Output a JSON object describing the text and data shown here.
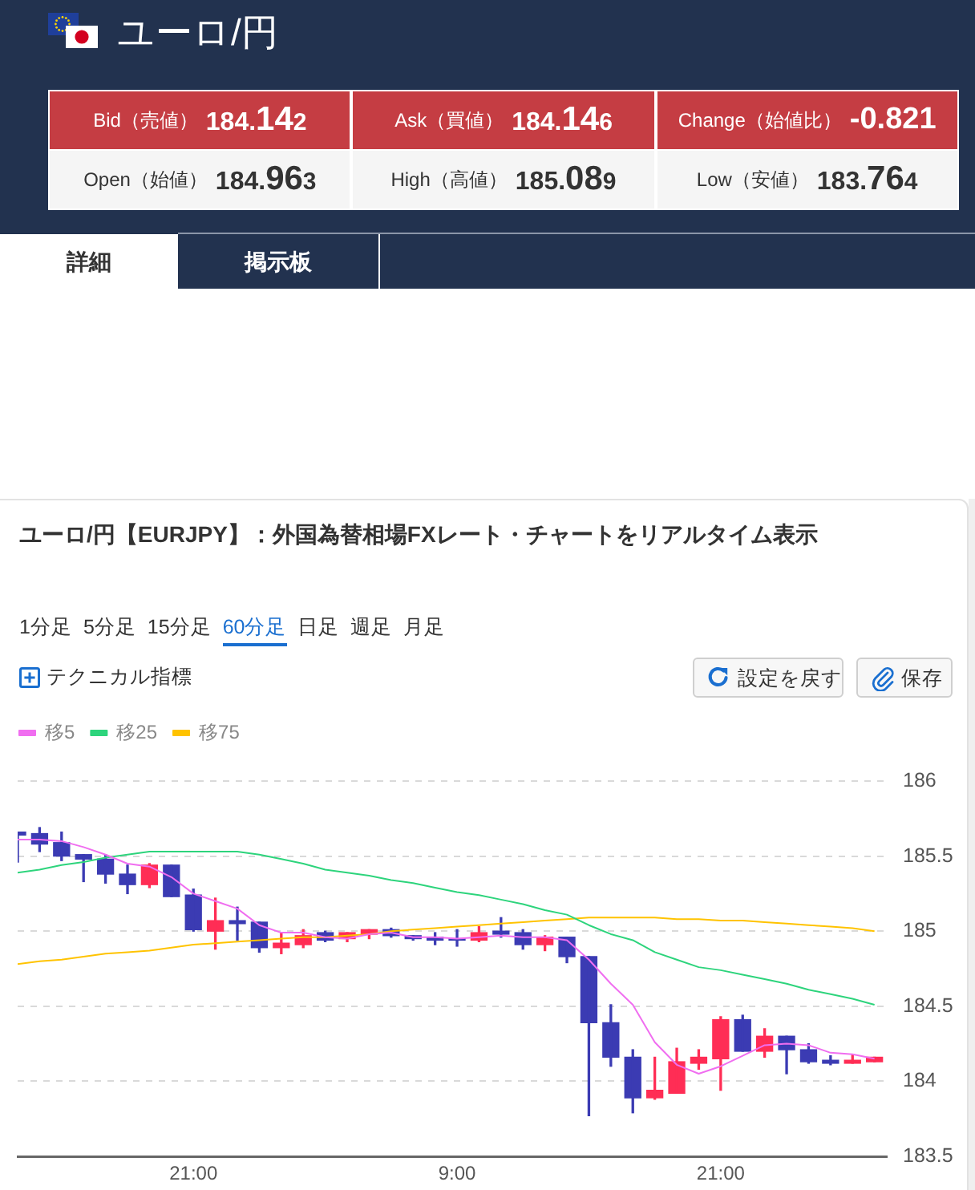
{
  "chart_data": [
    {
      "type": "other",
      "title": "ユーロ/円",
      "categories": [
        "Bid（売値）",
        "Ask（買値）",
        "Change（始値比）",
        "Open（始値）",
        "High（高値）",
        "Low（安値）"
      ],
      "values": [
        184.142,
        184.146,
        -0.821,
        184.963,
        185.089,
        183.764
      ],
      "colors": [
        "#c53d43",
        "#c53d43",
        "#c53d43",
        "#f5f5f5",
        "#f5f5f5",
        "#f5f5f5"
      ],
      "data_labels": true,
      "annotations": [
        "詳細",
        "掲示板"
      ]
    },
    {
      "type": "candlestick",
      "title": "ユーロ/円【EURJPY】：外国為替相場FXレート・チャートをリアルタイム表示",
      "annotations": [
        "1分足",
        "5分足",
        "15分足",
        "60分足",
        "日足",
        "週足",
        "月足",
        "テクニカル指標",
        "設定を戻す",
        "保存"
      ],
      "categories": [
        null,
        null,
        null,
        null,
        null,
        null,
        null,
        null,
        "21:00",
        null,
        null,
        null,
        null,
        null,
        null,
        null,
        null,
        null,
        null,
        null,
        "9:00",
        null,
        null,
        null,
        null,
        null,
        null,
        null,
        null,
        null,
        null,
        null,
        "21:00",
        null,
        null,
        null,
        null,
        null,
        null,
        null
      ],
      "ohlc": [
        [
          185.66,
          185.66,
          185.46,
          185.64
        ],
        [
          185.65,
          185.69,
          185.53,
          185.58
        ],
        [
          185.59,
          185.66,
          185.47,
          185.5
        ],
        [
          185.51,
          185.51,
          185.33,
          185.48
        ],
        [
          185.48,
          185.51,
          185.32,
          185.38
        ],
        [
          185.38,
          185.44,
          185.25,
          185.31
        ],
        [
          185.31,
          185.45,
          185.29,
          185.44
        ],
        [
          185.44,
          185.44,
          185.23,
          185.23
        ],
        [
          185.24,
          185.28,
          185.0,
          185.01
        ],
        [
          185.0,
          185.22,
          184.88,
          185.07
        ],
        [
          185.07,
          185.16,
          184.94,
          185.05
        ],
        [
          185.06,
          185.06,
          184.86,
          184.89
        ],
        [
          184.89,
          184.99,
          184.85,
          184.92
        ],
        [
          184.91,
          185.01,
          184.89,
          184.97
        ],
        [
          184.99,
          185.0,
          184.93,
          184.94
        ],
        [
          184.95,
          184.99,
          184.93,
          184.99
        ],
        [
          184.98,
          185.01,
          184.95,
          185.01
        ],
        [
          185.01,
          185.02,
          184.96,
          184.97
        ],
        [
          184.97,
          184.97,
          184.94,
          184.95
        ],
        [
          184.96,
          184.99,
          184.91,
          184.94
        ],
        [
          184.95,
          185.01,
          184.9,
          184.94
        ],
        [
          184.94,
          185.03,
          184.93,
          184.99
        ],
        [
          185.0,
          185.09,
          184.96,
          184.98
        ],
        [
          184.99,
          185.01,
          184.88,
          184.91
        ],
        [
          184.91,
          184.97,
          184.87,
          184.96
        ],
        [
          184.96,
          184.96,
          184.79,
          184.83
        ],
        [
          184.83,
          184.83,
          183.77,
          184.39
        ],
        [
          184.39,
          184.51,
          184.1,
          184.16
        ],
        [
          184.16,
          184.21,
          183.79,
          183.89
        ],
        [
          183.89,
          184.16,
          183.88,
          183.94
        ],
        [
          183.92,
          184.22,
          183.92,
          184.13
        ],
        [
          184.12,
          184.21,
          184.08,
          184.16
        ],
        [
          184.15,
          184.43,
          183.94,
          184.41
        ],
        [
          184.41,
          184.44,
          184.2,
          184.2
        ],
        [
          184.2,
          184.35,
          184.16,
          184.3
        ],
        [
          184.3,
          184.3,
          184.05,
          184.21
        ],
        [
          184.21,
          184.25,
          184.12,
          184.13
        ],
        [
          184.14,
          184.17,
          184.11,
          184.12
        ],
        [
          184.12,
          184.18,
          184.12,
          184.14
        ],
        [
          184.13,
          184.16,
          184.13,
          184.16
        ]
      ],
      "colors": [
        "#3b3bb3",
        "#3b3bb3",
        "#3b3bb3",
        "#3b3bb3",
        "#3b3bb3",
        "#3b3bb3",
        "#ff2d55",
        "#3b3bb3",
        "#3b3bb3",
        "#ff2d55",
        "#3b3bb3",
        "#3b3bb3",
        "#ff2d55",
        "#ff2d55",
        "#3b3bb3",
        "#ff2d55",
        "#ff2d55",
        "#3b3bb3",
        "#3b3bb3",
        "#3b3bb3",
        "#3b3bb3",
        "#ff2d55",
        "#3b3bb3",
        "#3b3bb3",
        "#ff2d55",
        "#3b3bb3",
        "#3b3bb3",
        "#3b3bb3",
        "#3b3bb3",
        "#ff2d55",
        "#ff2d55",
        "#ff2d55",
        "#ff2d55",
        "#3b3bb3",
        "#ff2d55",
        "#3b3bb3",
        "#3b3bb3",
        "#3b3bb3",
        "#ff2d55",
        "#ff2d55"
      ],
      "series": [
        {
          "name": "移5",
          "type": "line",
          "color": "#f06ef0",
          "values": [
            185.61,
            185.61,
            185.6,
            185.56,
            185.51,
            185.45,
            185.43,
            185.36,
            185.25,
            185.2,
            185.15,
            185.04,
            184.99,
            184.99,
            184.96,
            184.95,
            184.98,
            184.99,
            184.96,
            184.96,
            184.95,
            184.96,
            184.97,
            184.96,
            184.96,
            184.94,
            184.81,
            184.65,
            184.51,
            184.26,
            184.11,
            184.05,
            184.1,
            184.17,
            184.24,
            184.25,
            184.24,
            184.19,
            184.18,
            184.15
          ]
        },
        {
          "name": "移25",
          "type": "line",
          "color": "#2dd47c",
          "values": [
            185.39,
            185.41,
            185.44,
            185.46,
            185.49,
            185.51,
            185.53,
            185.53,
            185.53,
            185.53,
            185.53,
            185.51,
            185.48,
            185.45,
            185.41,
            185.39,
            185.37,
            185.34,
            185.32,
            185.29,
            185.26,
            185.24,
            185.21,
            185.18,
            185.14,
            185.11,
            185.04,
            184.98,
            184.94,
            184.86,
            184.81,
            184.76,
            184.74,
            184.71,
            184.68,
            184.65,
            184.61,
            184.58,
            184.55,
            184.51
          ]
        },
        {
          "name": "移75",
          "type": "line",
          "color": "#ffc300",
          "values": [
            184.78,
            184.8,
            184.81,
            184.83,
            184.85,
            184.86,
            184.87,
            184.89,
            184.91,
            184.92,
            184.93,
            184.94,
            184.95,
            184.96,
            184.96,
            184.97,
            184.98,
            185.0,
            185.01,
            185.02,
            185.03,
            185.04,
            185.05,
            185.06,
            185.07,
            185.08,
            185.09,
            185.09,
            185.09,
            185.09,
            185.08,
            185.08,
            185.07,
            185.07,
            185.06,
            185.05,
            185.04,
            185.03,
            185.02,
            185.0
          ]
        }
      ],
      "ylim": [
        183.5,
        186
      ],
      "yticks": [
        183.5,
        184,
        184.5,
        185,
        185.5,
        186
      ],
      "grid": "y",
      "legend": "top left"
    }
  ]
}
